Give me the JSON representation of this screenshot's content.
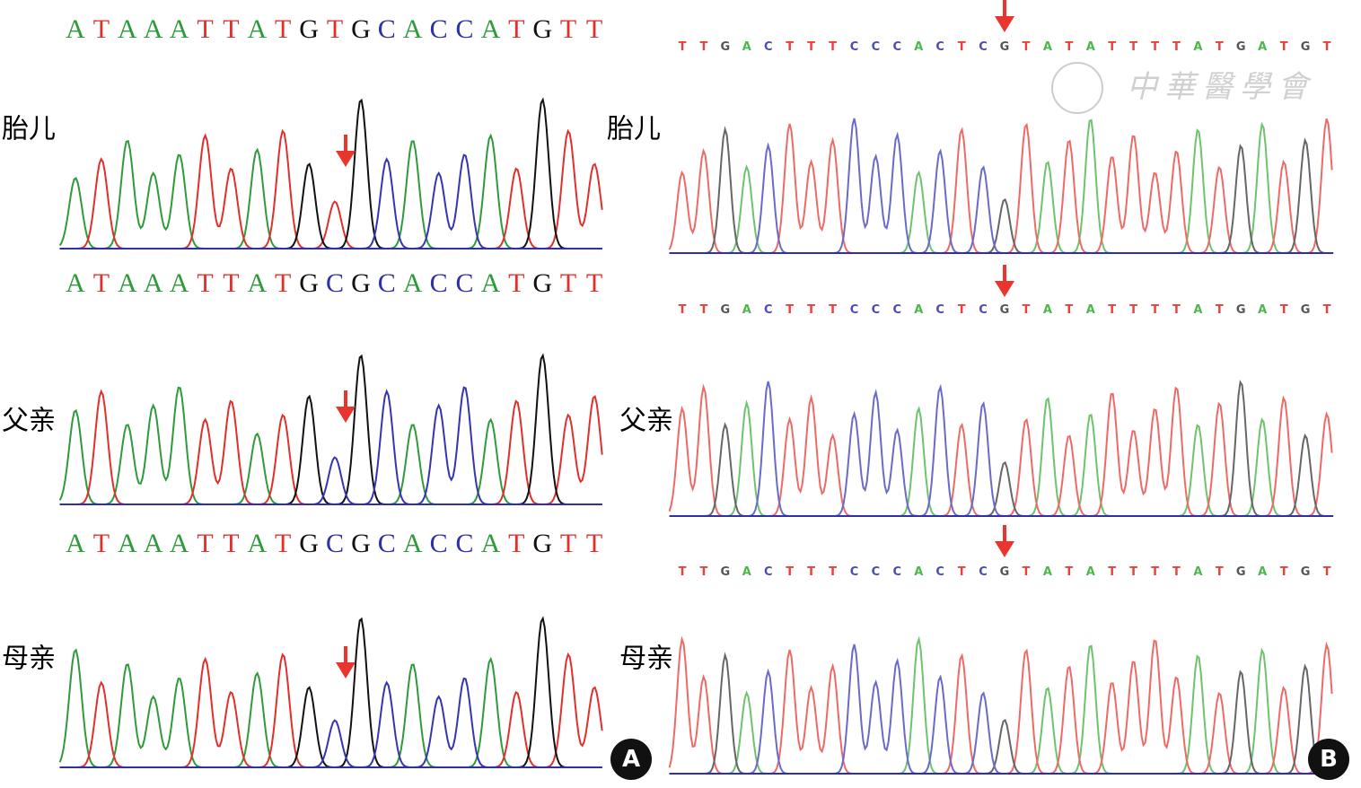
{
  "panels": [
    {
      "label": "A",
      "tracks": [
        {
          "subject": "胎儿",
          "bases": [
            "A",
            "T",
            "A",
            "A",
            "A",
            "T",
            "T",
            "A",
            "T",
            "G",
            "T",
            "G",
            "C",
            "A",
            "C",
            "C",
            "A",
            "T",
            "G",
            "T",
            "T"
          ]
        },
        {
          "subject": "父亲",
          "bases": [
            "A",
            "T",
            "A",
            "A",
            "A",
            "T",
            "T",
            "A",
            "T",
            "G",
            "C",
            "G",
            "C",
            "A",
            "C",
            "C",
            "A",
            "T",
            "G",
            "T",
            "T"
          ]
        },
        {
          "subject": "母亲",
          "bases": [
            "A",
            "T",
            "A",
            "A",
            "A",
            "T",
            "T",
            "A",
            "T",
            "G",
            "C",
            "G",
            "C",
            "A",
            "C",
            "C",
            "A",
            "T",
            "G",
            "T",
            "T"
          ]
        }
      ]
    },
    {
      "label": "B",
      "watermark": "中華醫學會",
      "tracks": [
        {
          "subject": "胎儿",
          "bases": [
            "T",
            "T",
            "G",
            "A",
            "C",
            "T",
            "T",
            "T",
            "C",
            "C",
            "C",
            "A",
            "C",
            "T",
            "C",
            "G",
            "T",
            "A",
            "T",
            "A",
            "T",
            "T",
            "T",
            "T",
            "A",
            "T",
            "G",
            "A",
            "T",
            "G",
            "T"
          ]
        },
        {
          "subject": "父亲",
          "bases": [
            "T",
            "T",
            "G",
            "A",
            "C",
            "T",
            "T",
            "T",
            "C",
            "C",
            "C",
            "A",
            "C",
            "T",
            "C",
            "G",
            "T",
            "A",
            "T",
            "A",
            "T",
            "T",
            "T",
            "T",
            "A",
            "T",
            "G",
            "A",
            "T",
            "G",
            "T"
          ]
        },
        {
          "subject": "母亲",
          "bases": [
            "T",
            "T",
            "G",
            "A",
            "C",
            "T",
            "T",
            "T",
            "C",
            "C",
            "C",
            "A",
            "C",
            "T",
            "C",
            "G",
            "T",
            "A",
            "T",
            "A",
            "T",
            "T",
            "T",
            "T",
            "A",
            "T",
            "G",
            "A",
            "T",
            "G",
            "T"
          ]
        }
      ]
    }
  ]
}
